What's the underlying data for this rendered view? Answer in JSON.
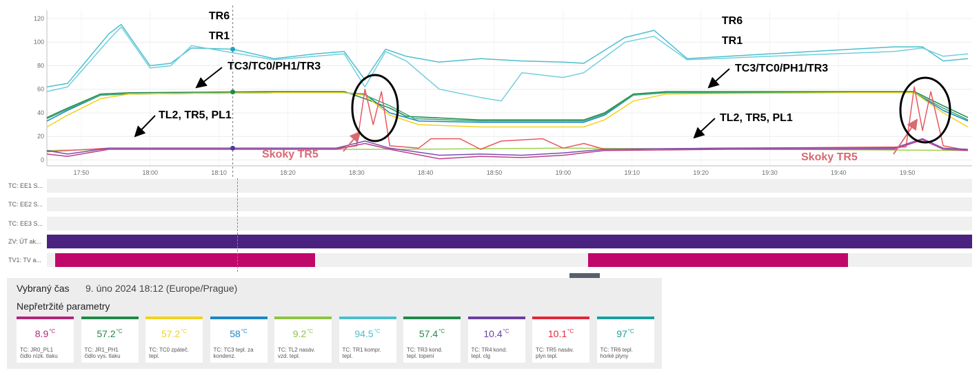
{
  "chart_data": {
    "type": "line",
    "x_range": [
      "17:45",
      "19:59"
    ],
    "x_ticks": [
      "17:50",
      "18:00",
      "18:10",
      "18:20",
      "18:30",
      "18:40",
      "18:50",
      "19:00",
      "19:10",
      "19:20",
      "19:30",
      "19:40",
      "19:50"
    ],
    "y_ticks": [
      "120",
      "100",
      "80",
      "60",
      "40",
      "20",
      "0"
    ],
    "ylim": [
      -5,
      127
    ],
    "cursor_time": "18:12",
    "series": [
      {
        "name": "TR6",
        "color": "#4bbfcc",
        "points": [
          [
            17.75,
            62
          ],
          [
            17.8,
            65
          ],
          [
            17.9,
            107
          ],
          [
            17.93,
            115
          ],
          [
            18.0,
            80
          ],
          [
            18.05,
            82
          ],
          [
            18.1,
            95
          ],
          [
            18.2,
            94
          ],
          [
            18.3,
            86
          ],
          [
            18.4,
            90
          ],
          [
            18.47,
            92
          ],
          [
            18.52,
            68
          ],
          [
            18.57,
            94
          ],
          [
            18.62,
            88
          ],
          [
            18.7,
            83
          ],
          [
            18.8,
            86
          ],
          [
            18.9,
            84
          ],
          [
            19.0,
            83
          ],
          [
            19.05,
            82
          ],
          [
            19.15,
            104
          ],
          [
            19.22,
            110
          ],
          [
            19.3,
            86
          ],
          [
            19.5,
            90
          ],
          [
            19.8,
            96
          ],
          [
            19.87,
            96
          ],
          [
            19.92,
            84
          ],
          [
            19.98,
            86
          ]
        ]
      },
      {
        "name": "TR1",
        "color": "#6fcfdd",
        "points": [
          [
            17.75,
            58
          ],
          [
            17.8,
            62
          ],
          [
            17.9,
            102
          ],
          [
            17.93,
            113
          ],
          [
            18.0,
            78
          ],
          [
            18.05,
            80
          ],
          [
            18.1,
            97
          ],
          [
            18.2,
            91
          ],
          [
            18.3,
            85
          ],
          [
            18.4,
            88
          ],
          [
            18.47,
            90
          ],
          [
            18.52,
            62
          ],
          [
            18.57,
            92
          ],
          [
            18.62,
            84
          ],
          [
            18.7,
            60
          ],
          [
            18.8,
            53
          ],
          [
            18.85,
            50
          ],
          [
            18.9,
            74
          ],
          [
            19.0,
            70
          ],
          [
            19.05,
            74
          ],
          [
            19.15,
            100
          ],
          [
            19.22,
            105
          ],
          [
            19.3,
            85
          ],
          [
            19.5,
            88
          ],
          [
            19.8,
            92
          ],
          [
            19.87,
            95
          ],
          [
            19.92,
            88
          ],
          [
            19.98,
            90
          ]
        ]
      },
      {
        "name": "TC3",
        "color": "#1b86c7",
        "points": [
          [
            17.75,
            33
          ],
          [
            17.8,
            42
          ],
          [
            17.88,
            55
          ],
          [
            17.95,
            56
          ],
          [
            18.3,
            57
          ],
          [
            18.47,
            57
          ],
          [
            18.52,
            56
          ],
          [
            18.58,
            40
          ],
          [
            18.65,
            33
          ],
          [
            18.8,
            32
          ],
          [
            19.05,
            32
          ],
          [
            19.1,
            38
          ],
          [
            19.17,
            55
          ],
          [
            19.25,
            57
          ],
          [
            19.7,
            57
          ],
          [
            19.85,
            57
          ],
          [
            19.92,
            42
          ],
          [
            19.98,
            33
          ]
        ]
      },
      {
        "name": "TR3",
        "color": "#1f8a4a",
        "points": [
          [
            17.75,
            36
          ],
          [
            17.8,
            44
          ],
          [
            17.88,
            56
          ],
          [
            17.95,
            57
          ],
          [
            18.3,
            58
          ],
          [
            18.47,
            58
          ],
          [
            18.52,
            52
          ],
          [
            18.58,
            44
          ],
          [
            18.62,
            37
          ],
          [
            18.8,
            34
          ],
          [
            19.05,
            34
          ],
          [
            19.1,
            40
          ],
          [
            19.17,
            56
          ],
          [
            19.25,
            58
          ],
          [
            19.7,
            58
          ],
          [
            19.85,
            58
          ],
          [
            19.92,
            46
          ],
          [
            19.98,
            36
          ]
        ]
      },
      {
        "name": "PH1",
        "color": "#3aa870",
        "points": [
          [
            17.75,
            35
          ],
          [
            17.8,
            43
          ],
          [
            17.88,
            55
          ],
          [
            17.95,
            56
          ],
          [
            18.3,
            57
          ],
          [
            18.47,
            57
          ],
          [
            18.52,
            55
          ],
          [
            18.58,
            46
          ],
          [
            18.64,
            35
          ],
          [
            18.8,
            33
          ],
          [
            19.05,
            33
          ],
          [
            19.1,
            39
          ],
          [
            19.17,
            55
          ],
          [
            19.25,
            57
          ],
          [
            19.7,
            57
          ],
          [
            19.85,
            57
          ],
          [
            19.92,
            44
          ],
          [
            19.98,
            34
          ]
        ]
      },
      {
        "name": "TC0",
        "color": "#f2d21a",
        "points": [
          [
            17.75,
            28
          ],
          [
            17.8,
            38
          ],
          [
            17.88,
            52
          ],
          [
            17.95,
            56
          ],
          [
            18.3,
            57
          ],
          [
            18.47,
            57
          ],
          [
            18.52,
            55
          ],
          [
            18.58,
            38
          ],
          [
            18.65,
            30
          ],
          [
            18.8,
            28
          ],
          [
            19.05,
            28
          ],
          [
            19.1,
            34
          ],
          [
            19.17,
            50
          ],
          [
            19.25,
            56
          ],
          [
            19.7,
            57
          ],
          [
            19.85,
            57
          ],
          [
            19.92,
            40
          ],
          [
            19.98,
            28
          ]
        ]
      },
      {
        "name": "TL2",
        "color": "#9bd24a",
        "points": [
          [
            17.75,
            8
          ],
          [
            17.9,
            9
          ],
          [
            18.3,
            9
          ],
          [
            18.6,
            9
          ],
          [
            19.0,
            10
          ],
          [
            19.5,
            9
          ],
          [
            19.98,
            8
          ]
        ]
      },
      {
        "name": "TR5",
        "color": "#e8575f",
        "points": [
          [
            17.75,
            7
          ],
          [
            17.9,
            10
          ],
          [
            18.2,
            10
          ],
          [
            18.45,
            10
          ],
          [
            18.5,
            12
          ],
          [
            18.52,
            60
          ],
          [
            18.54,
            30
          ],
          [
            18.56,
            58
          ],
          [
            18.58,
            12
          ],
          [
            18.65,
            10
          ],
          [
            18.68,
            18
          ],
          [
            18.75,
            18
          ],
          [
            18.8,
            9
          ],
          [
            18.85,
            16
          ],
          [
            18.95,
            18
          ],
          [
            19.0,
            10
          ],
          [
            19.05,
            14
          ],
          [
            19.1,
            9
          ],
          [
            19.4,
            10
          ],
          [
            19.83,
            11
          ],
          [
            19.85,
            62
          ],
          [
            19.87,
            25
          ],
          [
            19.89,
            58
          ],
          [
            19.92,
            12
          ],
          [
            19.98,
            8
          ]
        ]
      },
      {
        "name": "PL1",
        "color": "#c03c8a",
        "points": [
          [
            17.75,
            5
          ],
          [
            17.8,
            3
          ],
          [
            17.9,
            9
          ],
          [
            18.2,
            9
          ],
          [
            18.45,
            9
          ],
          [
            18.52,
            14
          ],
          [
            18.58,
            9
          ],
          [
            18.7,
            1
          ],
          [
            18.8,
            3
          ],
          [
            18.9,
            2
          ],
          [
            19.0,
            4
          ],
          [
            19.1,
            8
          ],
          [
            19.4,
            9
          ],
          [
            19.8,
            9
          ],
          [
            19.87,
            17
          ],
          [
            19.92,
            9
          ],
          [
            19.98,
            8
          ]
        ]
      },
      {
        "name": "TR4",
        "color": "#7a4bb0",
        "points": [
          [
            17.75,
            8
          ],
          [
            17.8,
            5
          ],
          [
            17.9,
            10
          ],
          [
            18.2,
            10
          ],
          [
            18.45,
            10
          ],
          [
            18.52,
            16
          ],
          [
            18.58,
            10
          ],
          [
            18.7,
            4
          ],
          [
            18.8,
            5
          ],
          [
            18.9,
            4
          ],
          [
            19.0,
            6
          ],
          [
            19.1,
            9
          ],
          [
            19.4,
            10
          ],
          [
            19.8,
            10
          ],
          [
            19.87,
            18
          ],
          [
            19.92,
            10
          ],
          [
            19.98,
            9
          ]
        ]
      }
    ],
    "annotations": [
      {
        "text": "TR6",
        "color": "#000000"
      },
      {
        "text": "TR1",
        "color": "#000000"
      },
      {
        "text": "TC3/TC0/PH1/TR3",
        "color": "#000000"
      },
      {
        "text": "TL2, TR5, PL1",
        "color": "#000000"
      },
      {
        "text": "Skoky TR5",
        "color": "#d86a72"
      },
      {
        "text": "TR6",
        "color": "#000000"
      },
      {
        "text": "TR1",
        "color": "#000000"
      },
      {
        "text": "TC3/TC0/PH1/TR3",
        "color": "#000000"
      },
      {
        "text": "TL2, TR5, PL1",
        "color": "#000000"
      },
      {
        "text": "Skoky TR5",
        "color": "#d86a72"
      }
    ]
  },
  "lanes": [
    {
      "label": "TC: EE1 S...",
      "color": "",
      "segments": []
    },
    {
      "label": "TC: EE2 S...",
      "color": "",
      "segments": []
    },
    {
      "label": "TC: EE3 S...",
      "color": "",
      "segments": []
    },
    {
      "label": "ZV: ÚT ak...",
      "color": "#4a2280",
      "segments": [
        [
          17.75,
          19.99
        ]
      ]
    },
    {
      "label": "TV1: TV a...",
      "color": "#c0086a",
      "segments": [
        [
          17.77,
          18.4
        ],
        [
          19.06,
          19.69
        ]
      ]
    }
  ],
  "panel": {
    "selected_time_label": "Vybraný čas",
    "selected_time_value": "9. úno 2024 18:12 (Europe/Prague)",
    "params_title": "Nepřetržité parametry"
  },
  "cards": [
    {
      "value": "8.9",
      "unit": "°C",
      "color": "#b0267a",
      "label": "TC: JR0_PL1\nčidlo nízk. tlaku"
    },
    {
      "value": "57.2",
      "unit": "°C",
      "color": "#1f8a4a",
      "label": "TC: JR1_PH1\nčidlo vys. tlaku"
    },
    {
      "value": "57.2",
      "unit": "°C",
      "color": "#f2d21a",
      "label": "TC: TC0 zpáteč.\ntepl."
    },
    {
      "value": "58",
      "unit": "°C",
      "color": "#1b86c7",
      "label": "TC: TC3 tepl. za\nkondenz."
    },
    {
      "value": "9.2",
      "unit": "°C",
      "color": "#8bc53f",
      "label": "TC: TL2 nasáv.\nvzd. tepl."
    },
    {
      "value": "94.5",
      "unit": "°C",
      "color": "#4bbfcc",
      "label": "TC: TR1 kompr.\ntepl."
    },
    {
      "value": "57.4",
      "unit": "°C",
      "color": "#1f8a4a",
      "label": "TC: TR3 kond.\ntepl. topení"
    },
    {
      "value": "10.4",
      "unit": "°C",
      "color": "#6b3fa0",
      "label": "TC: TR4 kond.\ntepl. clg"
    },
    {
      "value": "10.1",
      "unit": "°C",
      "color": "#e0283a",
      "label": "TC: TR5 nasáv.\nplyn tepl."
    },
    {
      "value": "97",
      "unit": "°C",
      "color": "#17a0a0",
      "label": "TC: TR6 tepl.\nhorké plyny"
    }
  ]
}
